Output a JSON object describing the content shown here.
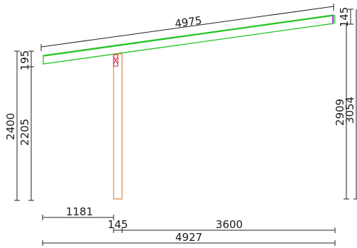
{
  "dimensions": {
    "beam_length": "4975",
    "beam_height_right": "145",
    "beam_height_left": "195",
    "height_left_total": "2400",
    "height_left_post": "2205",
    "height_right_beam": "2909",
    "height_right_total": "3054",
    "offset_left": "1181",
    "post_width": "145",
    "span_right": "3600",
    "total_length": "4927"
  },
  "colors": {
    "beam": "#22c422",
    "post": "#d98a4e",
    "connector": "#d4203a",
    "end_plate": "#9a4fd0",
    "dimension_lines": "#222222"
  }
}
